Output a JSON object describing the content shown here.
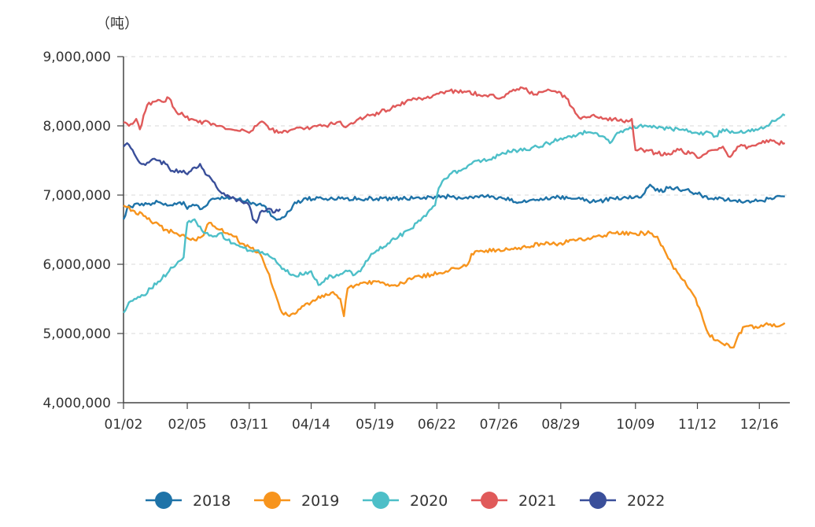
{
  "chart_data": {
    "type": "line",
    "title": "",
    "unit_label": "（吨）",
    "xlabel": "",
    "ylabel": "",
    "ylim": [
      4000000,
      9000000
    ],
    "y_ticks": [
      4000000,
      5000000,
      6000000,
      7000000,
      8000000,
      9000000
    ],
    "y_tick_labels": [
      "4,000,000",
      "5,000,000",
      "6,000,000",
      "7,000,000",
      "8,000,000",
      "9,000,000"
    ],
    "x_range": [
      1,
      365
    ],
    "x_ticks": [
      1,
      36,
      70,
      104,
      139,
      173,
      207,
      241,
      282,
      316,
      350
    ],
    "x_tick_labels": [
      "01/02",
      "02/05",
      "03/11",
      "04/14",
      "05/19",
      "06/22",
      "07/26",
      "08/29",
      "10/09",
      "11/12",
      "12/16"
    ],
    "grid": true,
    "legend_position": "bottom",
    "series": [
      {
        "name": "2018",
        "color": "#1f73a8",
        "points": [
          [
            1,
            6650000
          ],
          [
            4,
            6850000
          ],
          [
            12,
            6850000
          ],
          [
            20,
            6900000
          ],
          [
            28,
            6850000
          ],
          [
            34,
            6900000
          ],
          [
            36,
            6800000
          ],
          [
            40,
            6850000
          ],
          [
            44,
            6800000
          ],
          [
            50,
            6950000
          ],
          [
            56,
            6950000
          ],
          [
            62,
            6950000
          ],
          [
            70,
            6900000
          ],
          [
            74,
            6850000
          ],
          [
            78,
            6850000
          ],
          [
            82,
            6700000
          ],
          [
            86,
            6650000
          ],
          [
            90,
            6700000
          ],
          [
            94,
            6850000
          ],
          [
            100,
            6950000
          ],
          [
            110,
            6950000
          ],
          [
            120,
            6950000
          ],
          [
            130,
            6950000
          ],
          [
            140,
            6950000
          ],
          [
            150,
            6950000
          ],
          [
            160,
            6950000
          ],
          [
            170,
            6970000
          ],
          [
            180,
            6980000
          ],
          [
            190,
            6950000
          ],
          [
            200,
            6980000
          ],
          [
            210,
            6950000
          ],
          [
            220,
            6900000
          ],
          [
            230,
            6950000
          ],
          [
            240,
            6970000
          ],
          [
            250,
            6950000
          ],
          [
            260,
            6900000
          ],
          [
            270,
            6950000
          ],
          [
            278,
            6950000
          ],
          [
            282,
            6980000
          ],
          [
            286,
            7000000
          ],
          [
            290,
            7150000
          ],
          [
            295,
            7050000
          ],
          [
            300,
            7100000
          ],
          [
            310,
            7080000
          ],
          [
            318,
            7000000
          ],
          [
            324,
            6950000
          ],
          [
            330,
            6950000
          ],
          [
            340,
            6900000
          ],
          [
            350,
            6920000
          ],
          [
            358,
            6950000
          ],
          [
            364,
            6980000
          ]
        ]
      },
      {
        "name": "2019",
        "color": "#f7941d",
        "points": [
          [
            1,
            6850000
          ],
          [
            6,
            6780000
          ],
          [
            12,
            6700000
          ],
          [
            18,
            6600000
          ],
          [
            24,
            6500000
          ],
          [
            30,
            6450000
          ],
          [
            36,
            6380000
          ],
          [
            40,
            6350000
          ],
          [
            44,
            6400000
          ],
          [
            48,
            6600000
          ],
          [
            54,
            6500000
          ],
          [
            58,
            6450000
          ],
          [
            62,
            6400000
          ],
          [
            66,
            6300000
          ],
          [
            70,
            6250000
          ],
          [
            76,
            6150000
          ],
          [
            80,
            5900000
          ],
          [
            84,
            5600000
          ],
          [
            88,
            5300000
          ],
          [
            92,
            5250000
          ],
          [
            96,
            5300000
          ],
          [
            100,
            5400000
          ],
          [
            104,
            5450000
          ],
          [
            110,
            5550000
          ],
          [
            116,
            5600000
          ],
          [
            120,
            5500000
          ],
          [
            122,
            5250000
          ],
          [
            124,
            5650000
          ],
          [
            130,
            5700000
          ],
          [
            140,
            5750000
          ],
          [
            150,
            5700000
          ],
          [
            160,
            5800000
          ],
          [
            170,
            5850000
          ],
          [
            178,
            5900000
          ],
          [
            186,
            5950000
          ],
          [
            190,
            6000000
          ],
          [
            192,
            6150000
          ],
          [
            200,
            6200000
          ],
          [
            210,
            6200000
          ],
          [
            220,
            6250000
          ],
          [
            230,
            6300000
          ],
          [
            240,
            6300000
          ],
          [
            250,
            6350000
          ],
          [
            260,
            6400000
          ],
          [
            270,
            6450000
          ],
          [
            280,
            6450000
          ],
          [
            290,
            6450000
          ],
          [
            294,
            6400000
          ],
          [
            298,
            6200000
          ],
          [
            302,
            6000000
          ],
          [
            306,
            5850000
          ],
          [
            310,
            5700000
          ],
          [
            314,
            5550000
          ],
          [
            318,
            5300000
          ],
          [
            322,
            5000000
          ],
          [
            326,
            4900000
          ],
          [
            330,
            4850000
          ],
          [
            336,
            4800000
          ],
          [
            338,
            4950000
          ],
          [
            342,
            5100000
          ],
          [
            348,
            5100000
          ],
          [
            354,
            5150000
          ],
          [
            360,
            5100000
          ],
          [
            364,
            5150000
          ]
        ]
      },
      {
        "name": "2020",
        "color": "#4dbfc8",
        "points": [
          [
            1,
            5300000
          ],
          [
            4,
            5450000
          ],
          [
            8,
            5500000
          ],
          [
            12,
            5550000
          ],
          [
            16,
            5650000
          ],
          [
            20,
            5750000
          ],
          [
            26,
            5900000
          ],
          [
            30,
            6000000
          ],
          [
            34,
            6100000
          ],
          [
            36,
            6600000
          ],
          [
            40,
            6650000
          ],
          [
            42,
            6550000
          ],
          [
            46,
            6450000
          ],
          [
            50,
            6400000
          ],
          [
            54,
            6450000
          ],
          [
            58,
            6350000
          ],
          [
            62,
            6300000
          ],
          [
            66,
            6250000
          ],
          [
            70,
            6200000
          ],
          [
            74,
            6200000
          ],
          [
            78,
            6150000
          ],
          [
            82,
            6100000
          ],
          [
            86,
            6000000
          ],
          [
            90,
            5900000
          ],
          [
            94,
            5850000
          ],
          [
            100,
            5850000
          ],
          [
            104,
            5900000
          ],
          [
            108,
            5700000
          ],
          [
            112,
            5800000
          ],
          [
            118,
            5850000
          ],
          [
            124,
            5900000
          ],
          [
            128,
            5850000
          ],
          [
            132,
            5950000
          ],
          [
            136,
            6100000
          ],
          [
            140,
            6200000
          ],
          [
            146,
            6300000
          ],
          [
            152,
            6400000
          ],
          [
            158,
            6500000
          ],
          [
            162,
            6600000
          ],
          [
            166,
            6700000
          ],
          [
            170,
            6800000
          ],
          [
            172,
            6850000
          ],
          [
            174,
            7100000
          ],
          [
            176,
            7200000
          ],
          [
            180,
            7300000
          ],
          [
            186,
            7350000
          ],
          [
            192,
            7450000
          ],
          [
            198,
            7500000
          ],
          [
            204,
            7550000
          ],
          [
            210,
            7600000
          ],
          [
            216,
            7650000
          ],
          [
            222,
            7650000
          ],
          [
            228,
            7700000
          ],
          [
            234,
            7750000
          ],
          [
            240,
            7800000
          ],
          [
            246,
            7850000
          ],
          [
            252,
            7900000
          ],
          [
            258,
            7900000
          ],
          [
            264,
            7850000
          ],
          [
            268,
            7750000
          ],
          [
            272,
            7900000
          ],
          [
            278,
            7950000
          ],
          [
            284,
            8000000
          ],
          [
            290,
            8000000
          ],
          [
            296,
            7980000
          ],
          [
            302,
            7950000
          ],
          [
            308,
            7950000
          ],
          [
            314,
            7900000
          ],
          [
            320,
            7900000
          ],
          [
            326,
            7850000
          ],
          [
            330,
            7950000
          ],
          [
            336,
            7900000
          ],
          [
            342,
            7900000
          ],
          [
            348,
            7950000
          ],
          [
            354,
            8000000
          ],
          [
            360,
            8100000
          ],
          [
            364,
            8150000
          ]
        ]
      },
      {
        "name": "2021",
        "color": "#e05a5a",
        "points": [
          [
            1,
            8050000
          ],
          [
            4,
            8000000
          ],
          [
            8,
            8100000
          ],
          [
            10,
            7950000
          ],
          [
            14,
            8300000
          ],
          [
            18,
            8350000
          ],
          [
            22,
            8350000
          ],
          [
            26,
            8400000
          ],
          [
            30,
            8200000
          ],
          [
            34,
            8150000
          ],
          [
            38,
            8100000
          ],
          [
            42,
            8050000
          ],
          [
            48,
            8050000
          ],
          [
            54,
            8000000
          ],
          [
            60,
            7950000
          ],
          [
            66,
            7950000
          ],
          [
            70,
            7900000
          ],
          [
            74,
            8000000
          ],
          [
            78,
            8050000
          ],
          [
            82,
            7950000
          ],
          [
            88,
            7900000
          ],
          [
            94,
            7950000
          ],
          [
            100,
            7950000
          ],
          [
            106,
            8000000
          ],
          [
            112,
            8000000
          ],
          [
            118,
            8050000
          ],
          [
            124,
            8000000
          ],
          [
            130,
            8100000
          ],
          [
            136,
            8150000
          ],
          [
            142,
            8200000
          ],
          [
            148,
            8250000
          ],
          [
            152,
            8300000
          ],
          [
            156,
            8350000
          ],
          [
            160,
            8400000
          ],
          [
            166,
            8400000
          ],
          [
            172,
            8450000
          ],
          [
            178,
            8500000
          ],
          [
            184,
            8500000
          ],
          [
            190,
            8500000
          ],
          [
            196,
            8450000
          ],
          [
            202,
            8450000
          ],
          [
            208,
            8400000
          ],
          [
            214,
            8500000
          ],
          [
            220,
            8550000
          ],
          [
            226,
            8450000
          ],
          [
            232,
            8500000
          ],
          [
            238,
            8500000
          ],
          [
            244,
            8400000
          ],
          [
            248,
            8250000
          ],
          [
            252,
            8100000
          ],
          [
            258,
            8150000
          ],
          [
            264,
            8100000
          ],
          [
            270,
            8100000
          ],
          [
            276,
            8050000
          ],
          [
            280,
            8100000
          ],
          [
            282,
            7650000
          ],
          [
            288,
            7650000
          ],
          [
            294,
            7600000
          ],
          [
            300,
            7600000
          ],
          [
            306,
            7650000
          ],
          [
            312,
            7600000
          ],
          [
            318,
            7550000
          ],
          [
            324,
            7650000
          ],
          [
            330,
            7700000
          ],
          [
            334,
            7550000
          ],
          [
            338,
            7700000
          ],
          [
            344,
            7700000
          ],
          [
            350,
            7750000
          ],
          [
            356,
            7800000
          ],
          [
            360,
            7750000
          ],
          [
            364,
            7750000
          ]
        ]
      },
      {
        "name": "2022",
        "color": "#3a4f9a",
        "points": [
          [
            1,
            7700000
          ],
          [
            3,
            7750000
          ],
          [
            6,
            7650000
          ],
          [
            9,
            7500000
          ],
          [
            12,
            7450000
          ],
          [
            16,
            7500000
          ],
          [
            20,
            7500000
          ],
          [
            24,
            7450000
          ],
          [
            28,
            7350000
          ],
          [
            32,
            7350000
          ],
          [
            36,
            7300000
          ],
          [
            40,
            7400000
          ],
          [
            43,
            7450000
          ],
          [
            46,
            7300000
          ],
          [
            50,
            7200000
          ],
          [
            54,
            7050000
          ],
          [
            58,
            7000000
          ],
          [
            62,
            6950000
          ],
          [
            66,
            6900000
          ],
          [
            70,
            6850000
          ],
          [
            72,
            6650000
          ],
          [
            74,
            6600000
          ],
          [
            76,
            6750000
          ],
          [
            80,
            6800000
          ],
          [
            84,
            6750000
          ],
          [
            87,
            6800000
          ]
        ]
      }
    ]
  }
}
